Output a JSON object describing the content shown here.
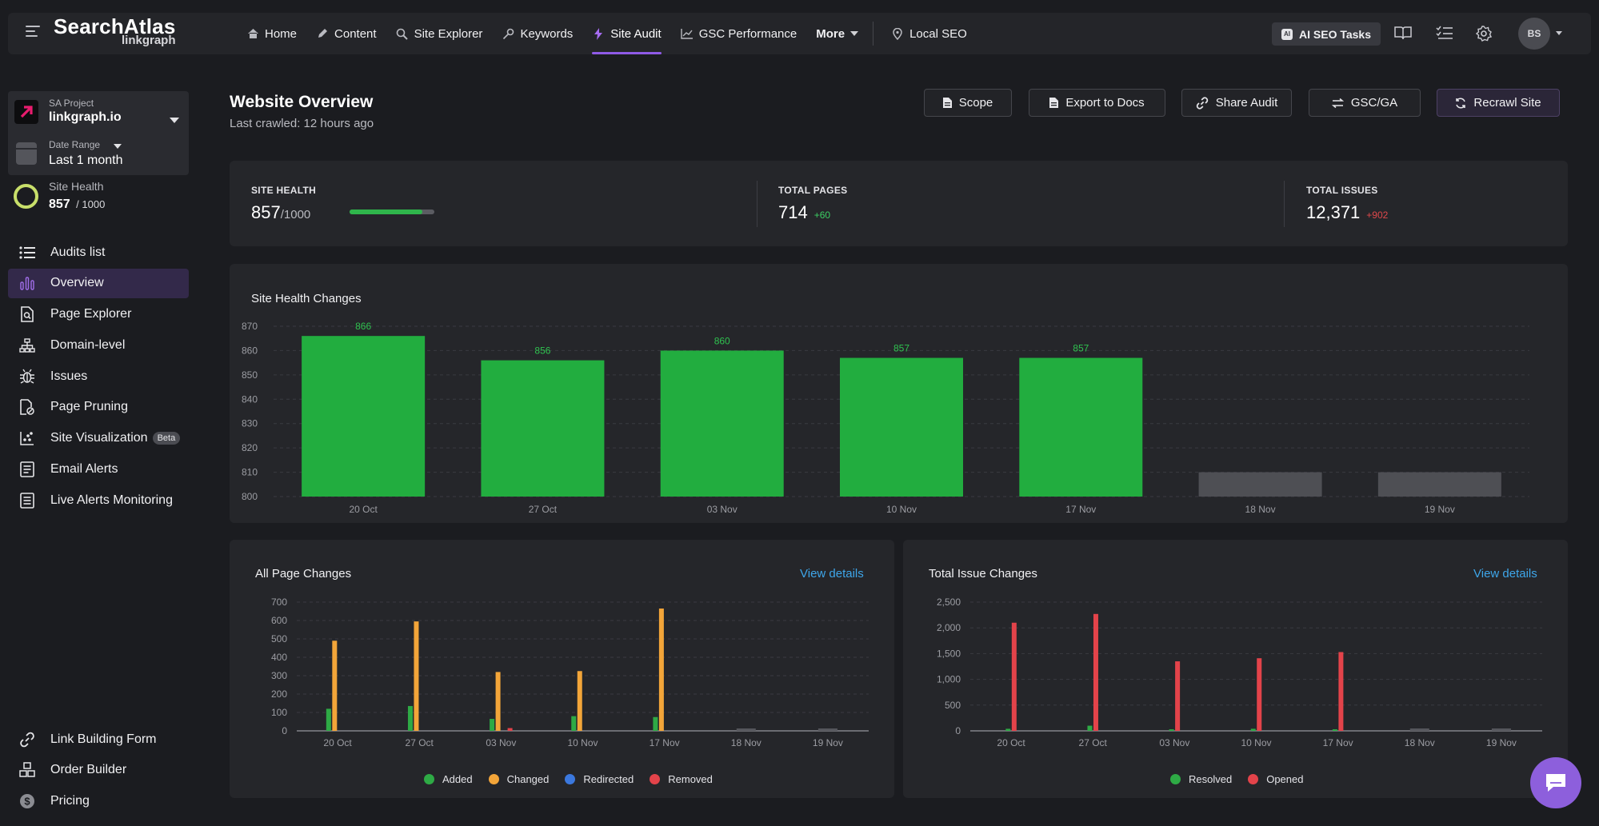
{
  "brand": {
    "name": "SearchAtlas",
    "sub": "linkgraph"
  },
  "nav": {
    "items": [
      {
        "label": "Home",
        "icon": "home-icon"
      },
      {
        "label": "Content",
        "icon": "pen-icon"
      },
      {
        "label": "Site Explorer",
        "icon": "globe-search-icon"
      },
      {
        "label": "Keywords",
        "icon": "key-icon"
      },
      {
        "label": "Site Audit",
        "icon": "bolt-icon",
        "active": true
      },
      {
        "label": "GSC Performance",
        "icon": "trend-icon"
      }
    ],
    "more": "More",
    "local_seo": "Local SEO",
    "ai_tasks": "AI SEO Tasks",
    "ai_badge": "AI",
    "avatar": "BS"
  },
  "sidebar": {
    "project_label": "SA Project",
    "project_value": "linkgraph.io",
    "date_label": "Date Range",
    "date_value": "Last 1 month",
    "health_label": "Site Health",
    "health_value": "857",
    "health_total": "/ 1000",
    "menu": [
      {
        "label": "Audits list",
        "icon": "list-icon"
      },
      {
        "label": "Overview",
        "icon": "bar-chart-icon",
        "active": true
      },
      {
        "label": "Page Explorer",
        "icon": "page-search-icon"
      },
      {
        "label": "Domain-level",
        "icon": "sitemap-icon"
      },
      {
        "label": "Issues",
        "icon": "bug-icon"
      },
      {
        "label": "Page Pruning",
        "icon": "page-prune-icon"
      },
      {
        "label": "Site Visualization",
        "icon": "scatter-icon",
        "badge": "Beta"
      },
      {
        "label": "Email Alerts",
        "icon": "mail-list-icon"
      },
      {
        "label": "Live Alerts Monitoring",
        "icon": "monitor-icon"
      }
    ],
    "bottom_menu": [
      {
        "label": "Link Building Form",
        "icon": "link-icon"
      },
      {
        "label": "Order Builder",
        "icon": "boxes-icon"
      },
      {
        "label": "Pricing",
        "icon": "dollar-icon"
      }
    ]
  },
  "header": {
    "title": "Website Overview",
    "subtitle": "Last crawled: 12 hours ago",
    "buttons": {
      "scope": "Scope",
      "export": "Export to Docs",
      "share": "Share Audit",
      "gscga": "GSC/GA",
      "recrawl": "Recrawl Site"
    }
  },
  "stats": {
    "site_health": {
      "label": "SITE HEALTH",
      "value": "857",
      "total": "/1000",
      "progress": 0.857
    },
    "total_pages": {
      "label": "TOTAL PAGES",
      "value": "714",
      "delta": "+60"
    },
    "total_issues": {
      "label": "TOTAL ISSUES",
      "value": "12,371",
      "delta": "+902"
    }
  },
  "colors": {
    "green": "#22ad3f",
    "gray": "#4e4f54",
    "added": "#2eaa45",
    "changed": "#f3a539",
    "redirected": "#3b78de",
    "removed": "#e3434a",
    "resolved": "#2eaa45",
    "opened": "#e3434a",
    "accent": "#8f5ae6",
    "link": "#3ea6ea"
  },
  "charts": {
    "health": {
      "title": "Site Health Changes"
    },
    "pages": {
      "title": "All Page Changes",
      "link": "View details"
    },
    "issues": {
      "title": "Total Issue Changes",
      "link": "View details"
    }
  },
  "chart_data": [
    {
      "type": "bar",
      "title": "Site Health Changes",
      "categories": [
        "20 Oct",
        "27 Oct",
        "03 Nov",
        "10 Nov",
        "17 Nov",
        "18 Nov",
        "19 Nov"
      ],
      "values": [
        866,
        856,
        860,
        857,
        857,
        810,
        810
      ],
      "data_labels": [
        "866",
        "856",
        "860",
        "857",
        "857",
        "",
        ""
      ],
      "pending": [
        false,
        false,
        false,
        false,
        false,
        true,
        true
      ],
      "ylim": [
        800,
        870
      ],
      "yticks": [
        800,
        810,
        820,
        830,
        840,
        850,
        860,
        870
      ],
      "grid": true
    },
    {
      "type": "bar",
      "title": "All Page Changes",
      "categories": [
        "20 Oct",
        "27 Oct",
        "03 Nov",
        "10 Nov",
        "17 Nov",
        "18 Nov",
        "19 Nov"
      ],
      "series": [
        {
          "name": "Added",
          "values": [
            120,
            135,
            65,
            80,
            75,
            0,
            0
          ]
        },
        {
          "name": "Changed",
          "values": [
            490,
            595,
            320,
            325,
            665,
            0,
            0
          ]
        },
        {
          "name": "Redirected",
          "values": [
            0,
            0,
            0,
            0,
            0,
            0,
            0
          ]
        },
        {
          "name": "Removed",
          "values": [
            0,
            0,
            15,
            0,
            0,
            0,
            0
          ]
        }
      ],
      "ylim": [
        0,
        700
      ],
      "yticks": [
        0,
        100,
        200,
        300,
        400,
        500,
        600,
        700
      ],
      "grid": true,
      "legend": "bottom"
    },
    {
      "type": "bar",
      "title": "Total Issue Changes",
      "categories": [
        "20 Oct",
        "27 Oct",
        "03 Nov",
        "10 Nov",
        "17 Nov",
        "18 Nov",
        "19 Nov"
      ],
      "series": [
        {
          "name": "Resolved",
          "values": [
            40,
            100,
            30,
            40,
            30,
            0,
            0
          ]
        },
        {
          "name": "Opened",
          "values": [
            2100,
            2270,
            1350,
            1410,
            1530,
            0,
            0
          ]
        }
      ],
      "ylim": [
        0,
        2500
      ],
      "yticks": [
        0,
        500,
        1000,
        1500,
        2000,
        2500
      ],
      "ytick_labels": [
        "0",
        "500",
        "1,000",
        "1,500",
        "2,000",
        "2,500"
      ],
      "grid": true,
      "legend": "bottom"
    }
  ]
}
